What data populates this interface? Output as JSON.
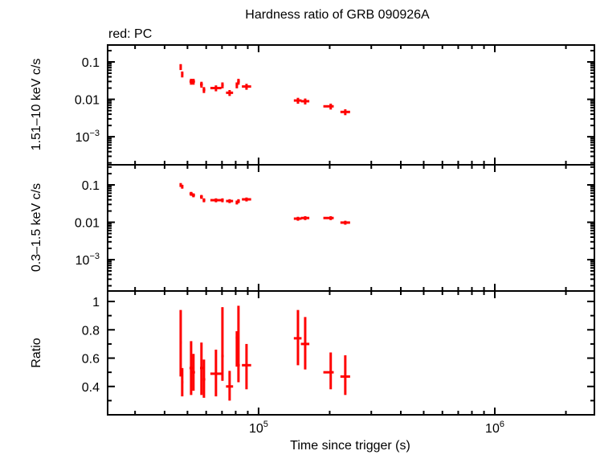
{
  "chart_data": {
    "type": "scatter",
    "title": "Hardness ratio of GRB 090926A",
    "legend_note": "red: PC",
    "xlabel": "Time since trigger (s)",
    "xscale": "log",
    "xlim": [
      22960,
      2640000
    ],
    "x_ticks": [
      {
        "value": 100000,
        "label": "10^5"
      },
      {
        "value": 1000000,
        "label": "10^6"
      }
    ],
    "series_color": "#ff0000",
    "grid": false,
    "x": [
      46800,
      47500,
      51800,
      53000,
      57300,
      58700,
      66000,
      70300,
      75400,
      80900,
      82200,
      88900,
      146800,
      157500,
      202000,
      232800
    ],
    "x_err": [
      [
        46300,
        47300
      ],
      [
        47000,
        48000
      ],
      [
        51000,
        52600
      ],
      [
        52200,
        53800
      ],
      [
        56500,
        58100
      ],
      [
        58000,
        59500
      ],
      [
        62500,
        69600
      ],
      [
        69500,
        71200
      ],
      [
        72800,
        78000
      ],
      [
        80000,
        81800
      ],
      [
        81200,
        83300
      ],
      [
        85000,
        93000
      ],
      [
        141000,
        152000
      ],
      [
        151000,
        164000
      ],
      [
        188000,
        208000
      ],
      [
        222000,
        244000
      ]
    ],
    "panels": [
      {
        "ylabel": "1.51–10 keV c/s",
        "yscale": "log",
        "ylim": [
          0.000178,
          0.283
        ],
        "y_ticks": [
          {
            "value": 0.1,
            "label": "0.1"
          },
          {
            "value": 0.01,
            "label": "0.01"
          },
          {
            "value": 0.001,
            "label": "10^-3"
          }
        ],
        "y": [
          0.074,
          0.047,
          0.03,
          0.03,
          0.025,
          0.018,
          0.02,
          0.024,
          0.015,
          0.024,
          0.03,
          0.022,
          0.0093,
          0.0089,
          0.0065,
          0.0046
        ],
        "y_err_frac": 0.18
      },
      {
        "ylabel": "0.3–1.5 keV c/s",
        "yscale": "log",
        "ylim": [
          0.000145,
          0.345
        ],
        "y_ticks": [
          {
            "value": 0.1,
            "label": "0.1"
          },
          {
            "value": 0.01,
            "label": "0.01"
          },
          {
            "value": 0.001,
            "label": "10^-3"
          }
        ],
        "y": [
          0.1,
          0.09,
          0.058,
          0.053,
          0.048,
          0.039,
          0.039,
          0.039,
          0.037,
          0.034,
          0.037,
          0.041,
          0.0125,
          0.013,
          0.013,
          0.0098
        ],
        "y_err_frac": 0.12
      },
      {
        "ylabel": "Ratio",
        "yscale": "linear",
        "ylim": [
          0.2,
          1.074
        ],
        "y_ticks": [
          {
            "value": 0.4,
            "label": "0.4"
          },
          {
            "value": 0.6,
            "label": "0.6"
          },
          {
            "value": 0.8,
            "label": "0.8"
          },
          {
            "value": 1,
            "label": "1"
          }
        ],
        "y": [
          0.71,
          0.43,
          0.53,
          0.5,
          0.53,
          0.45,
          0.49,
          0.615,
          0.4,
          0.745,
          0.55,
          0.55,
          0.74,
          0.7,
          0.5,
          0.47
        ],
        "y_err": [
          [
            0.47,
            0.94
          ],
          [
            0.33,
            0.53
          ],
          [
            0.34,
            0.72
          ],
          [
            0.37,
            0.63
          ],
          [
            0.34,
            0.71
          ],
          [
            0.32,
            0.59
          ],
          [
            0.33,
            0.66
          ],
          [
            0.44,
            0.96
          ],
          [
            0.3,
            0.51
          ],
          [
            0.54,
            0.79
          ],
          [
            0.43,
            0.97
          ],
          [
            0.38,
            0.7
          ],
          [
            0.55,
            0.94
          ],
          [
            0.52,
            0.89
          ],
          [
            0.38,
            0.64
          ],
          [
            0.34,
            0.62
          ]
        ]
      }
    ]
  }
}
